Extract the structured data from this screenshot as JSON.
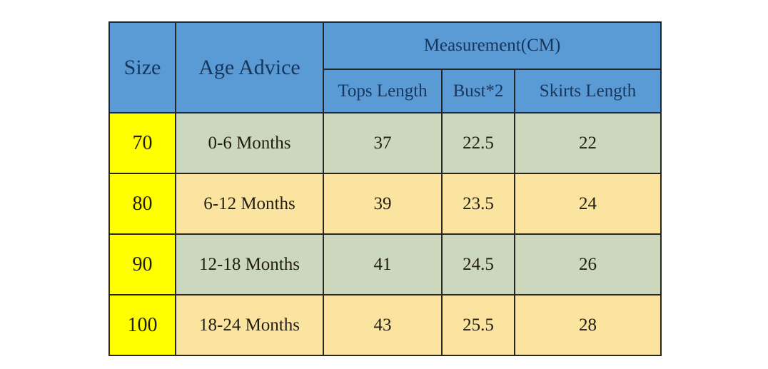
{
  "table": {
    "header": {
      "size_label": "Size",
      "age_label": "Age Advice",
      "measurement_label": "Measurement(CM)",
      "sub_columns": {
        "tops": "Tops Length",
        "bust": "Bust*2",
        "skirts": "Skirts Length"
      }
    },
    "rows": [
      {
        "size": "70",
        "age": "0-6 Months",
        "tops": "37",
        "bust": "22.5",
        "skirts": "22"
      },
      {
        "size": "80",
        "age": "6-12 Months",
        "tops": "39",
        "bust": "23.5",
        "skirts": "24"
      },
      {
        "size": "90",
        "age": "12-18 Months",
        "tops": "41",
        "bust": "24.5",
        "skirts": "26"
      },
      {
        "size": "100",
        "age": "18-24 Months",
        "tops": "43",
        "bust": "25.5",
        "skirts": "28"
      }
    ]
  },
  "colors": {
    "header-blue": "#5b9bd5",
    "size-yellow": "#ffff00",
    "row-green": "#ccd8bd",
    "row-cream": "#fbe3a0",
    "header-text": "#17365d",
    "body-text": "#211e10",
    "border": "#262626",
    "page-bg": "#ffffff"
  }
}
